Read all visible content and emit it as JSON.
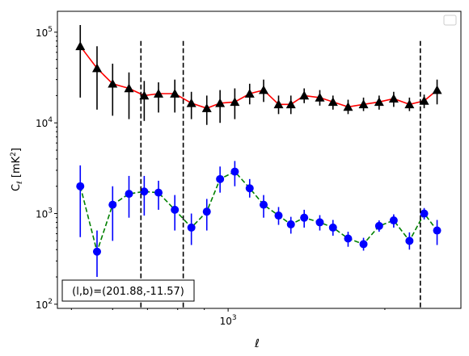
{
  "chart_data": {
    "type": "scatter",
    "xscale": "log",
    "yscale": "log",
    "xlim": [
      470,
      2800
    ],
    "ylim": [
      90,
      170000
    ],
    "xlabel": "ℓ",
    "ylabel": "C_ℓ  [mK²]",
    "x_tick_labels": [
      {
        "value": 1000,
        "label": "10^3"
      }
    ],
    "y_tick_labels": [
      {
        "value": 100,
        "label": "10^2"
      },
      {
        "value": 1000,
        "label": "10^3"
      },
      {
        "value": 10000,
        "label": "10^4"
      },
      {
        "value": 100000,
        "label": "10^5"
      }
    ],
    "annotation": "(l,b)=(201.88,-11.57)",
    "legend": {
      "placement": "top-right",
      "entries": []
    },
    "vlines": [
      680,
      820,
      2340
    ],
    "series": [
      {
        "line_color": "#ff0000",
        "line_style": "solid",
        "marker": "triangle",
        "marker_color": "#000000",
        "errorbar_color": "#000000",
        "x": [
          520,
          560,
          600,
          645,
          690,
          735,
          790,
          850,
          910,
          965,
          1030,
          1100,
          1170,
          1250,
          1320,
          1400,
          1500,
          1590,
          1700,
          1820,
          1950,
          2080,
          2230,
          2380,
          2520
        ],
        "y": [
          70000,
          40000,
          27000,
          24000,
          20000,
          21000,
          21000,
          16500,
          14500,
          16500,
          17000,
          21000,
          23000,
          16000,
          16000,
          20000,
          19000,
          17000,
          15000,
          16000,
          17000,
          18500,
          16000,
          17500,
          23000
        ],
        "y_low": [
          19000,
          14000,
          12000,
          11000,
          10500,
          13000,
          13000,
          11000,
          9500,
          10000,
          11000,
          16000,
          17000,
          12500,
          12500,
          16500,
          15500,
          14000,
          12500,
          13500,
          14000,
          15000,
          13500,
          14500,
          16000
        ],
        "y_high": [
          120000,
          70000,
          45000,
          36000,
          29000,
          28000,
          30000,
          22000,
          20000,
          23000,
          24000,
          27000,
          30000,
          20000,
          20000,
          24000,
          23000,
          20000,
          18000,
          19000,
          20000,
          22000,
          19000,
          20500,
          30000
        ]
      },
      {
        "line_color": "#008000",
        "line_style": "dashed",
        "marker": "circle",
        "marker_color": "#0000ff",
        "errorbar_color": "#0000ff",
        "x": [
          520,
          560,
          600,
          645,
          690,
          735,
          790,
          850,
          910,
          965,
          1030,
          1100,
          1170,
          1250,
          1320,
          1400,
          1500,
          1590,
          1700,
          1820,
          1950,
          2080,
          2230,
          2380,
          2520
        ],
        "y": [
          2000,
          380,
          1250,
          1650,
          1750,
          1700,
          1100,
          700,
          1050,
          2400,
          2900,
          1900,
          1250,
          950,
          760,
          900,
          800,
          700,
          530,
          460,
          730,
          840,
          500,
          1000,
          650
        ],
        "y_low": [
          550,
          200,
          500,
          900,
          950,
          1100,
          650,
          450,
          650,
          1700,
          2000,
          1500,
          900,
          750,
          600,
          700,
          650,
          570,
          430,
          390,
          630,
          700,
          400,
          860,
          450
        ],
        "y_high": [
          3400,
          650,
          2000,
          2600,
          2600,
          2300,
          1600,
          1000,
          1450,
          3300,
          3800,
          2400,
          1600,
          1180,
          920,
          1100,
          960,
          850,
          630,
          540,
          840,
          980,
          620,
          1150,
          850
        ]
      }
    ]
  }
}
